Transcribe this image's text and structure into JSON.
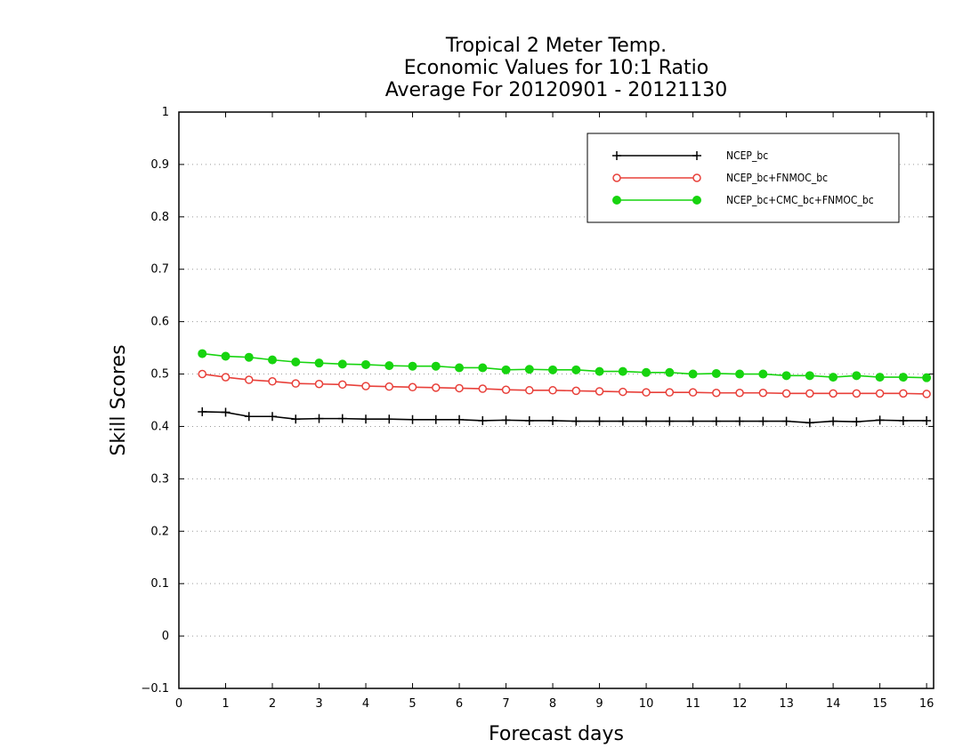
{
  "chart_data": {
    "type": "line",
    "title": [
      "Tropical 2 Meter Temp.",
      "Economic Values for 10:1 Ratio",
      "Average For 20120901 - 20121130"
    ],
    "xlabel": "Forecast days",
    "ylabel": "Skill Scores",
    "xlim": [
      0,
      16.15
    ],
    "ylim": [
      -0.1,
      1
    ],
    "xticks": [
      0,
      1,
      2,
      3,
      4,
      5,
      6,
      7,
      8,
      9,
      10,
      11,
      12,
      13,
      14,
      15,
      16
    ],
    "xtick_labels": [
      "0",
      "1",
      "2",
      "3",
      "4",
      "5",
      "6",
      "7",
      "8",
      "9",
      "10",
      "11",
      "12",
      "13",
      "14",
      "15",
      "16"
    ],
    "yticks": [
      -0.1,
      0,
      0.1,
      0.2,
      0.3,
      0.4,
      0.5,
      0.6,
      0.7,
      0.8,
      0.9,
      1
    ],
    "ytick_labels": [
      "−0.1",
      "0",
      "0.1",
      "0.2",
      "0.3",
      "0.4",
      "0.5",
      "0.6",
      "0.7",
      "0.8",
      "0.9",
      "1"
    ],
    "grid": "horizontal dotted",
    "legend_position": "top-right",
    "x": [
      0.5,
      1,
      1.5,
      2,
      2.5,
      3,
      3.5,
      4,
      4.5,
      5,
      5.5,
      6,
      6.5,
      7,
      7.5,
      8,
      8.5,
      9,
      9.5,
      10,
      10.5,
      11,
      11.5,
      12,
      12.5,
      13,
      13.5,
      14,
      14.5,
      15,
      15.5,
      16
    ],
    "series": [
      {
        "name": "NCEP_bc",
        "color": "#000000",
        "marker": "plus",
        "values": [
          0.428,
          0.427,
          0.419,
          0.419,
          0.414,
          0.415,
          0.415,
          0.414,
          0.414,
          0.413,
          0.413,
          0.413,
          0.411,
          0.412,
          0.411,
          0.411,
          0.41,
          0.41,
          0.41,
          0.41,
          0.41,
          0.41,
          0.41,
          0.41,
          0.41,
          0.41,
          0.407,
          0.41,
          0.409,
          0.412,
          0.411,
          0.411
        ]
      },
      {
        "name": "NCEP_bc+FNMOC_bc",
        "color": "#e8403a",
        "marker": "open-circle",
        "values": [
          0.5,
          0.494,
          0.489,
          0.486,
          0.482,
          0.481,
          0.48,
          0.477,
          0.476,
          0.475,
          0.474,
          0.473,
          0.472,
          0.47,
          0.469,
          0.469,
          0.468,
          0.467,
          0.466,
          0.465,
          0.465,
          0.465,
          0.464,
          0.464,
          0.464,
          0.463,
          0.463,
          0.463,
          0.463,
          0.463,
          0.463,
          0.462
        ]
      },
      {
        "name": "NCEP_bc+CMC_bc+FNMOC_bc",
        "color": "#17d40f",
        "marker": "filled-circle",
        "values": [
          0.539,
          0.534,
          0.532,
          0.527,
          0.523,
          0.521,
          0.519,
          0.518,
          0.516,
          0.515,
          0.515,
          0.512,
          0.512,
          0.508,
          0.509,
          0.508,
          0.508,
          0.505,
          0.505,
          0.503,
          0.503,
          0.5,
          0.501,
          0.5,
          0.5,
          0.497,
          0.497,
          0.494,
          0.497,
          0.494,
          0.494,
          0.493
        ]
      }
    ]
  }
}
